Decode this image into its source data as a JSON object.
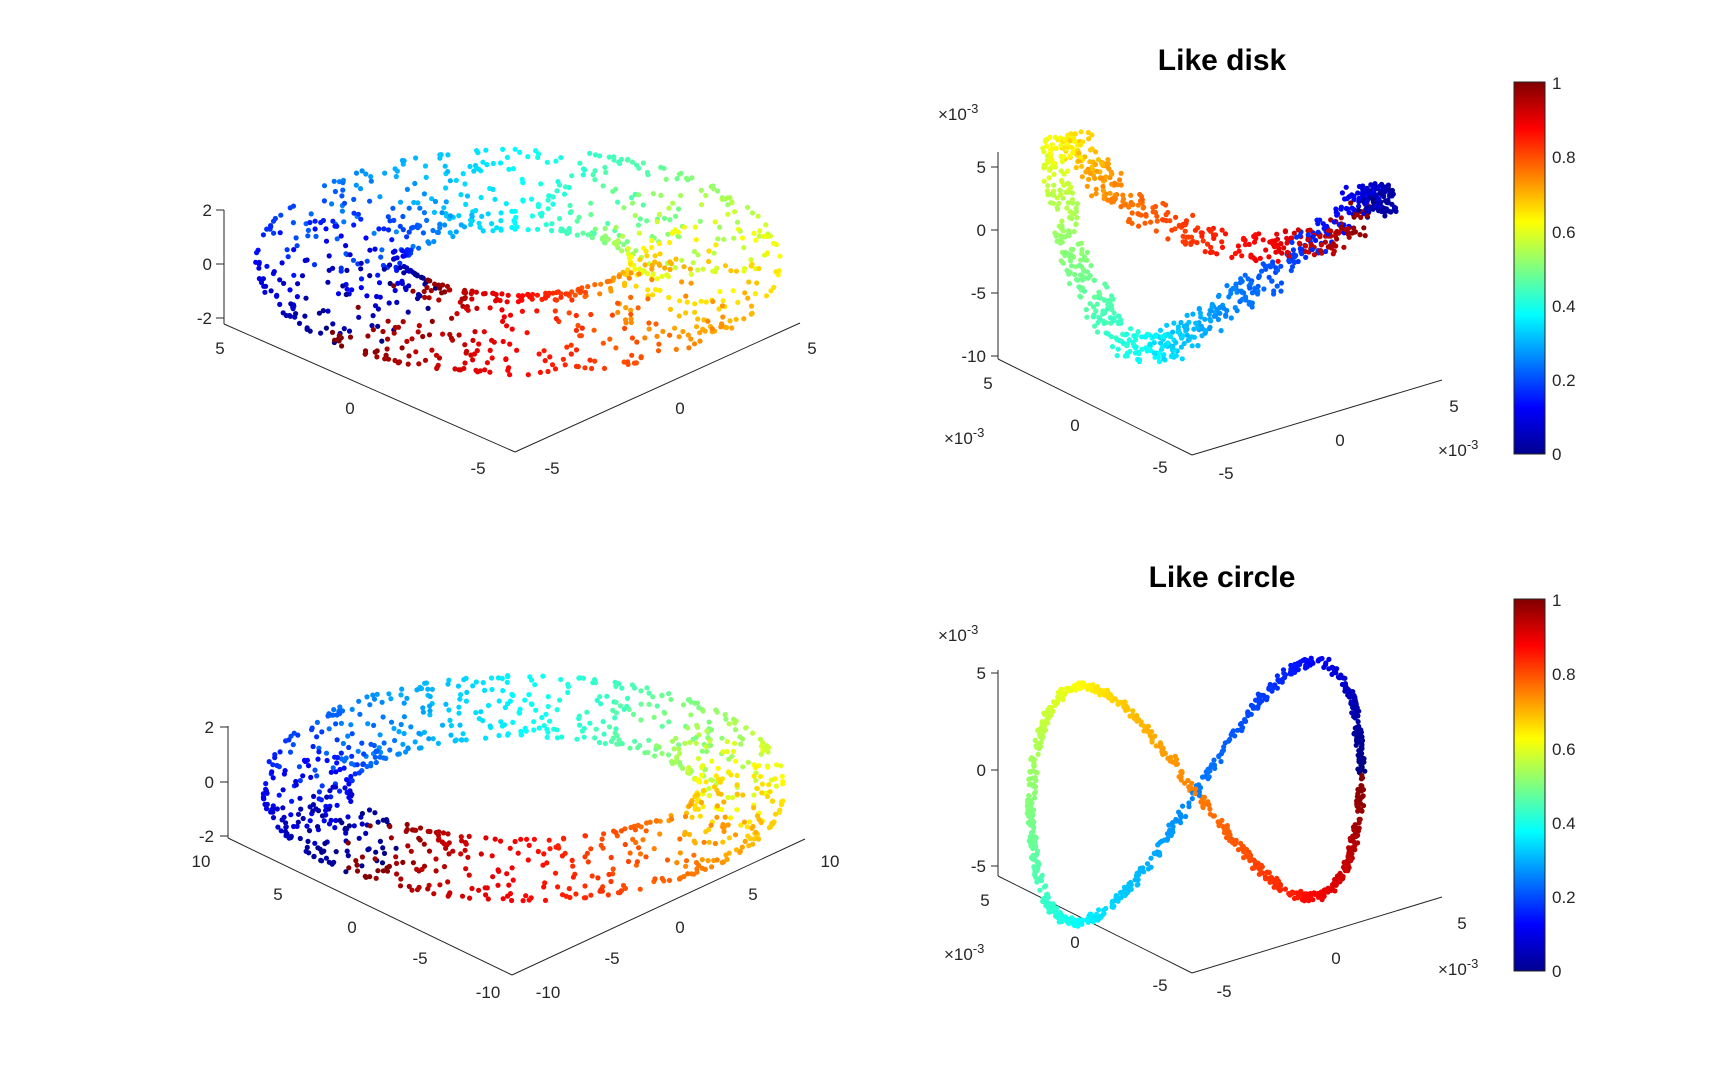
{
  "chart_data": [
    {
      "type": "scatter",
      "kind": "torus-3d",
      "title": "",
      "major_radius": 5,
      "minor_radius": 2,
      "zlim": [
        -2,
        2
      ],
      "ztick_labels": [
        "2",
        "0",
        "-2"
      ],
      "ytick_labels": [
        "5",
        "0",
        "-5"
      ],
      "xtick_labels": [
        "-5",
        "0",
        "5"
      ],
      "n_points": 1000,
      "colormap": "jet",
      "color_by": "angle around torus",
      "grid": false
    },
    {
      "type": "scatter",
      "kind": "embedding-3d",
      "title": "Like disk",
      "exponent_label": "×10",
      "exponent_power": "-3",
      "ztick_labels": [
        "5",
        "0",
        "-5",
        "-10"
      ],
      "ytick_labels": [
        "5",
        "0",
        "-5"
      ],
      "xtick_labels": [
        "-5",
        "0",
        "5"
      ],
      "colorbar": {
        "range": [
          0,
          1
        ],
        "tick_labels": [
          "1",
          "0.8",
          "0.6",
          "0.4",
          "0.2",
          "0"
        ],
        "placement": "right"
      },
      "colormap": "jet",
      "grid": false
    },
    {
      "type": "scatter",
      "kind": "torus-3d",
      "title": "",
      "major_radius": 10,
      "minor_radius": 2,
      "zlim": [
        -2,
        2
      ],
      "ztick_labels": [
        "2",
        "0",
        "-2"
      ],
      "ytick_labels": [
        "10",
        "5",
        "0",
        "-5",
        "-10"
      ],
      "xtick_labels": [
        "-10",
        "-5",
        "0",
        "5",
        "10"
      ],
      "n_points": 1000,
      "colormap": "jet",
      "color_by": "angle around torus",
      "grid": false
    },
    {
      "type": "scatter",
      "kind": "embedding-3d",
      "title": "Like circle",
      "exponent_label": "×10",
      "exponent_power": "-3",
      "ztick_labels": [
        "5",
        "0",
        "-5"
      ],
      "ytick_labels": [
        "5",
        "0",
        "-5"
      ],
      "xtick_labels": [
        "-5",
        "0",
        "5"
      ],
      "colorbar": {
        "range": [
          0,
          1
        ],
        "tick_labels": [
          "1",
          "0.8",
          "0.6",
          "0.4",
          "0.2",
          "0"
        ],
        "placement": "right"
      },
      "colormap": "jet",
      "grid": false
    }
  ]
}
